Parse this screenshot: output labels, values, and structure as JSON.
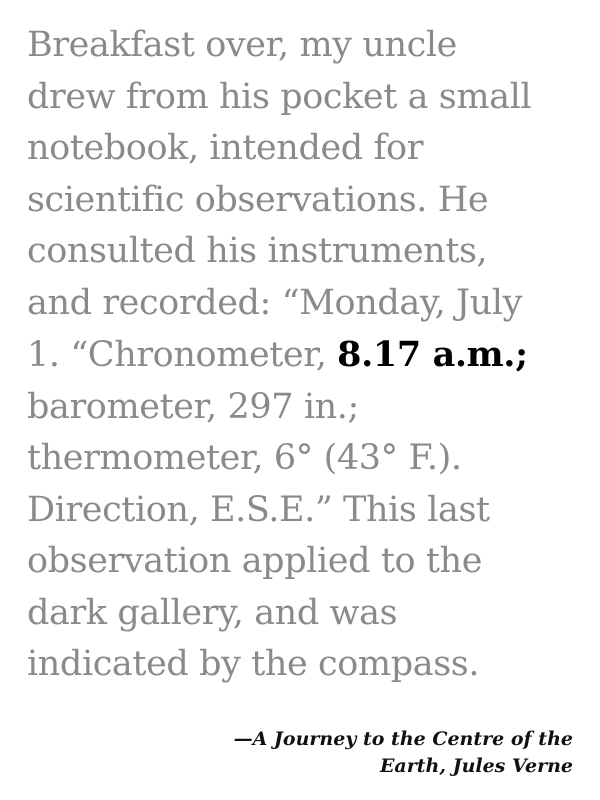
{
  "passage": {
    "lines": [
      "Breakfast over, my uncle",
      "drew from his pocket a small",
      "notebook, intended for",
      "scientific observations. He",
      "consulted his instruments,",
      "and recorded: “Monday, July",
      "1. “Chronometer, ",
      "barometer, 297 in.;",
      "thermometer, 6° (43° F.).",
      "Direction, E.S.E.” This last",
      "observation applied to the",
      "dark gallery, and was",
      "indicated by the compass."
    ],
    "highlight": "8.17 a.m.;"
  },
  "attribution": {
    "line1": "—A Journey to the Centre of the",
    "line2": "Earth, Jules Verne"
  },
  "colors": {
    "body_text": "#8a8a8a",
    "highlight_text": "#000000",
    "attribution_text": "#111111",
    "background": "#ffffff"
  }
}
